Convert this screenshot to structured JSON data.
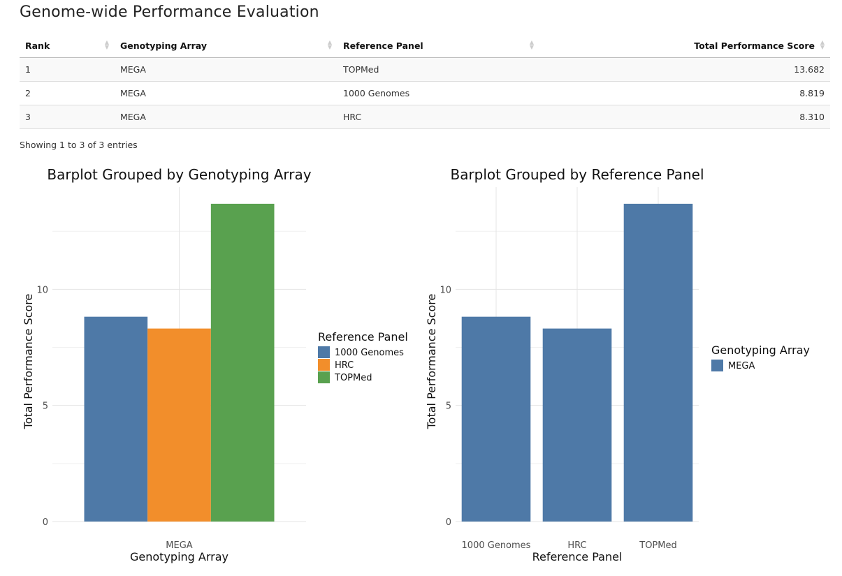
{
  "page": {
    "title": "Genome-wide Performance Evaluation"
  },
  "table": {
    "columns": [
      "Rank",
      "Genotyping Array",
      "Reference Panel",
      "Total Performance Score"
    ],
    "rows": [
      [
        "1",
        "MEGA",
        "TOPMed",
        "13.682"
      ],
      [
        "2",
        "MEGA",
        "1000 Genomes",
        "8.819"
      ],
      [
        "3",
        "MEGA",
        "HRC",
        "8.310"
      ]
    ],
    "info": "Showing 1 to 3 of 3 entries"
  },
  "colors": {
    "1000 Genomes": "#4e79a7",
    "HRC": "#f28e2b",
    "TOPMed": "#59a14f",
    "MEGA": "#4e79a7"
  },
  "chart_data": [
    {
      "type": "bar",
      "title": "Barplot Grouped by Genotyping Array",
      "xlabel": "Genotyping Array",
      "ylabel": "Total Performance Score",
      "categories": [
        "MEGA"
      ],
      "series": [
        {
          "name": "1000 Genomes",
          "values": [
            8.819
          ]
        },
        {
          "name": "HRC",
          "values": [
            8.31
          ]
        },
        {
          "name": "TOPMed",
          "values": [
            13.682
          ]
        }
      ],
      "yticks": [
        0,
        5,
        10
      ],
      "ylim": [
        0,
        14.4
      ],
      "legend": {
        "title": "Reference Panel",
        "position": "right"
      },
      "grid": true
    },
    {
      "type": "bar",
      "title": "Barplot Grouped by Reference Panel",
      "xlabel": "Reference Panel",
      "ylabel": "Total Performance Score",
      "categories": [
        "1000 Genomes",
        "HRC",
        "TOPMed"
      ],
      "series": [
        {
          "name": "MEGA",
          "values": [
            8.819,
            8.31,
            13.682
          ]
        }
      ],
      "yticks": [
        0,
        5,
        10
      ],
      "ylim": [
        0,
        14.4
      ],
      "legend": {
        "title": "Genotyping Array",
        "position": "right"
      },
      "grid": true
    }
  ]
}
